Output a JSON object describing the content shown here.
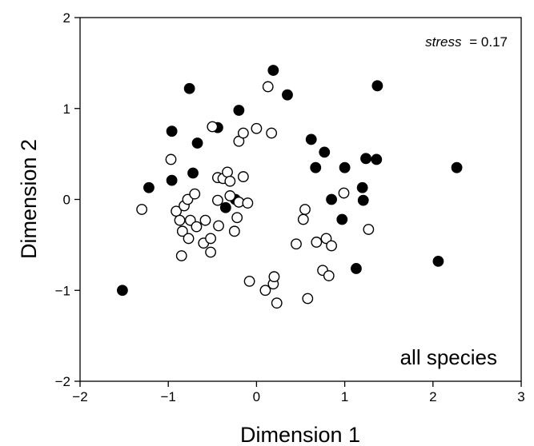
{
  "chart_data": {
    "type": "scatter",
    "title": "",
    "xlabel": "Dimension 1",
    "ylabel": "Dimension 2",
    "xlim": [
      -2,
      3
    ],
    "ylim": [
      -2,
      2
    ],
    "xticks": [
      -2,
      -1,
      0,
      1,
      2,
      3
    ],
    "yticks": [
      -2,
      -1,
      0,
      1,
      2
    ],
    "xtick_labels": [
      "−2",
      "−1",
      "0",
      "1",
      "2",
      "3"
    ],
    "ytick_labels": [
      "−2",
      "−1",
      "0",
      "1",
      "2"
    ],
    "grid": false,
    "annotations": {
      "stress_label": "stress",
      "stress_value": "= 0.17",
      "panel_label": "all species"
    },
    "series": [
      {
        "marker": "filled",
        "color": "#000000",
        "points": [
          [
            -1.52,
            -1.0
          ],
          [
            -1.22,
            0.13
          ],
          [
            -0.96,
            0.75
          ],
          [
            -0.96,
            0.21
          ],
          [
            -0.76,
            1.22
          ],
          [
            -0.72,
            0.29
          ],
          [
            -0.67,
            0.62
          ],
          [
            -0.44,
            0.79
          ],
          [
            -0.35,
            -0.09
          ],
          [
            -0.24,
            0.0
          ],
          [
            -0.2,
            0.98
          ],
          [
            0.19,
            1.42
          ],
          [
            0.35,
            1.15
          ],
          [
            0.62,
            0.66
          ],
          [
            0.67,
            0.35
          ],
          [
            0.77,
            0.52
          ],
          [
            0.85,
            0.0
          ],
          [
            0.97,
            -0.22
          ],
          [
            1.0,
            0.35
          ],
          [
            1.13,
            -0.76
          ],
          [
            1.2,
            0.13
          ],
          [
            1.21,
            -0.01
          ],
          [
            1.24,
            0.45
          ],
          [
            1.36,
            0.44
          ],
          [
            1.37,
            1.25
          ],
          [
            2.06,
            -0.68
          ],
          [
            2.27,
            0.35
          ]
        ]
      },
      {
        "marker": "open",
        "color": "#000000",
        "points": [
          [
            -1.3,
            -0.11
          ],
          [
            -0.97,
            0.44
          ],
          [
            -0.91,
            -0.13
          ],
          [
            -0.87,
            -0.23
          ],
          [
            -0.85,
            -0.62
          ],
          [
            -0.84,
            -0.35
          ],
          [
            -0.82,
            -0.07
          ],
          [
            -0.78,
            0.0
          ],
          [
            -0.77,
            -0.43
          ],
          [
            -0.75,
            -0.23
          ],
          [
            -0.7,
            0.06
          ],
          [
            -0.68,
            -0.3
          ],
          [
            -0.6,
            -0.48
          ],
          [
            -0.58,
            -0.23
          ],
          [
            -0.52,
            -0.43
          ],
          [
            -0.52,
            -0.58
          ],
          [
            -0.5,
            0.8
          ],
          [
            -0.44,
            0.24
          ],
          [
            -0.44,
            -0.01
          ],
          [
            -0.43,
            -0.29
          ],
          [
            -0.38,
            0.23
          ],
          [
            -0.33,
            0.3
          ],
          [
            -0.3,
            0.2
          ],
          [
            -0.3,
            0.04
          ],
          [
            -0.25,
            -0.35
          ],
          [
            -0.22,
            -0.2
          ],
          [
            -0.2,
            0.64
          ],
          [
            -0.2,
            -0.03
          ],
          [
            -0.15,
            0.25
          ],
          [
            -0.15,
            0.73
          ],
          [
            -0.1,
            -0.04
          ],
          [
            -0.08,
            -0.9
          ],
          [
            -0.0,
            0.78
          ],
          [
            0.1,
            -1.0
          ],
          [
            0.13,
            1.24
          ],
          [
            0.17,
            0.73
          ],
          [
            0.19,
            -0.93
          ],
          [
            0.2,
            -0.85
          ],
          [
            0.23,
            -1.14
          ],
          [
            0.45,
            -0.49
          ],
          [
            0.53,
            -0.22
          ],
          [
            0.55,
            -0.11
          ],
          [
            0.58,
            -1.09
          ],
          [
            0.68,
            -0.47
          ],
          [
            0.75,
            -0.78
          ],
          [
            0.79,
            -0.43
          ],
          [
            0.82,
            -0.84
          ],
          [
            0.85,
            -0.51
          ],
          [
            0.99,
            0.07
          ],
          [
            1.27,
            -0.33
          ]
        ]
      }
    ]
  }
}
